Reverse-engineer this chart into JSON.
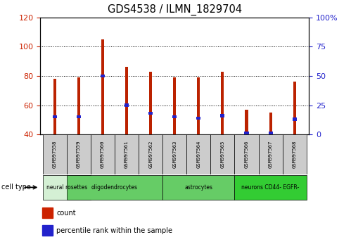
{
  "title": "GDS4538 / ILMN_1829704",
  "samples": [
    "GSM997558",
    "GSM997559",
    "GSM997560",
    "GSM997561",
    "GSM997562",
    "GSM997563",
    "GSM997564",
    "GSM997565",
    "GSM997566",
    "GSM997567",
    "GSM997568"
  ],
  "count_values": [
    78,
    79,
    105,
    86,
    83,
    79,
    79,
    83,
    57,
    55,
    76
  ],
  "percentile_values": [
    15,
    15,
    50,
    25,
    18,
    15,
    14,
    16,
    1,
    1,
    13
  ],
  "ylim_left": [
    40,
    120
  ],
  "ylim_right": [
    0,
    100
  ],
  "yticks_left": [
    40,
    60,
    80,
    100,
    120
  ],
  "yticks_right": [
    0,
    25,
    50,
    75,
    100
  ],
  "ytick_labels_left": [
    "40",
    "60",
    "80",
    "100",
    "120"
  ],
  "ytick_labels_right": [
    "0",
    "25",
    "50",
    "75",
    "100%"
  ],
  "group_spans": [
    {
      "label": "neural rosettes",
      "start": 0,
      "end": 1,
      "color": "#d4f0d4"
    },
    {
      "label": "oligodendrocytes",
      "start": 1,
      "end": 4,
      "color": "#66cc66"
    },
    {
      "label": "astrocytes",
      "start": 5,
      "end": 7,
      "color": "#66cc66"
    },
    {
      "label": "neurons CD44- EGFR-",
      "start": 8,
      "end": 10,
      "color": "#33cc33"
    }
  ],
  "bar_color": "#bb2200",
  "percentile_color": "#2222cc",
  "bar_width": 0.12,
  "tick_label_color_left": "#cc2200",
  "tick_label_color_right": "#2222cc",
  "grid_color": "#000000",
  "sample_bg": "#cccccc",
  "plot_bg": "#ffffff",
  "legend_count_color": "#cc2200",
  "legend_pct_color": "#2222cc"
}
